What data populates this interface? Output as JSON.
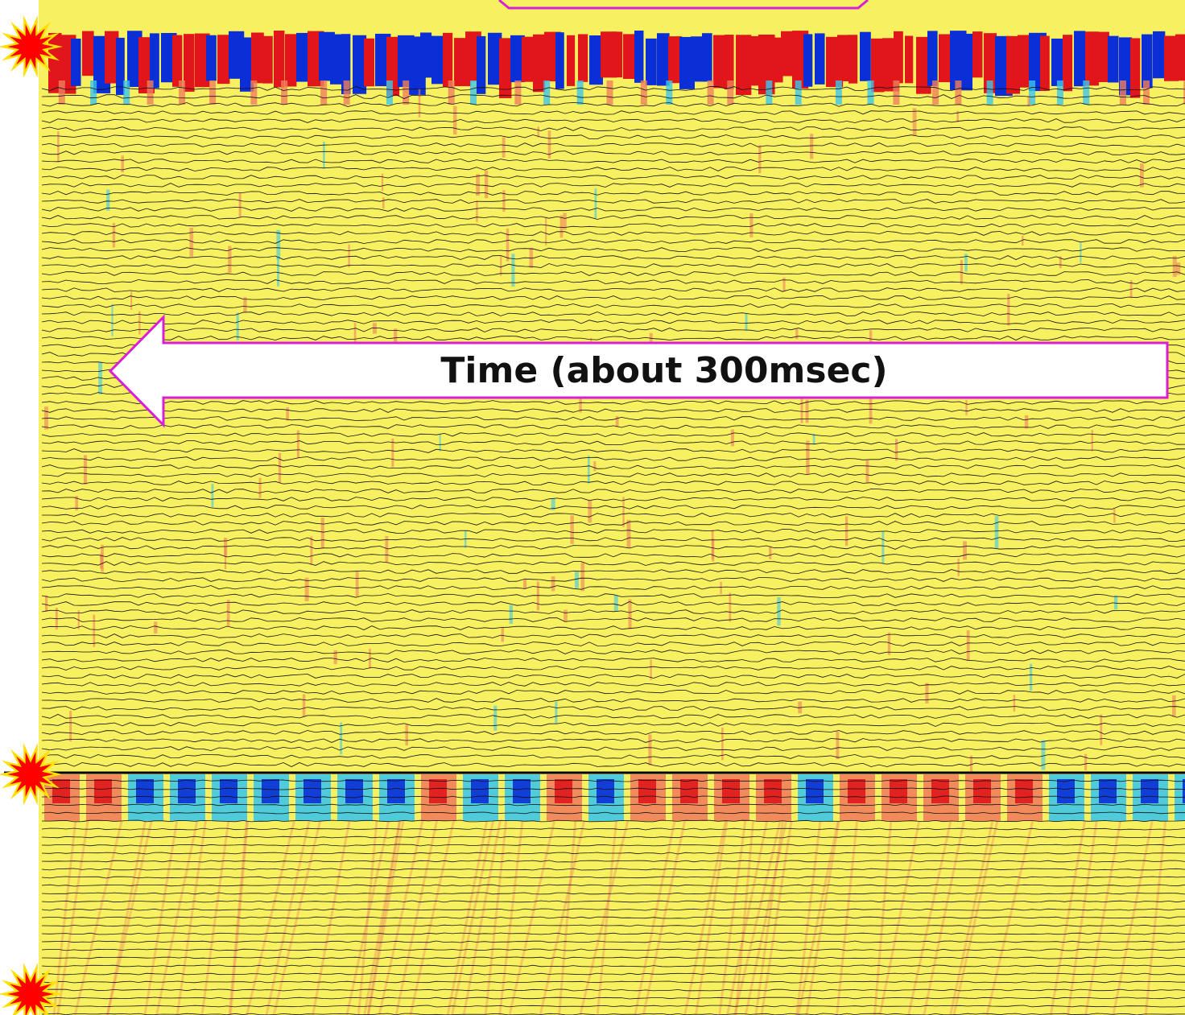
{
  "annotation": {
    "time_arrow_label": "Time (about 300msec)"
  },
  "colors": {
    "background_fill": "#f7f060",
    "trace_line": "#111111",
    "positive_strong": "#e0161b",
    "positive_weak": "#ef7f5c",
    "negative_strong": "#0a2fd6",
    "negative_weak": "#3cc6e8",
    "highlight_border": "#d81fd8",
    "arrow_fill": "#ffffff",
    "burst_outer": "#ffe000",
    "burst_inner": "#ff0000",
    "divider_line": "#000000"
  },
  "icons": {
    "source_markers": [
      "red-starburst-icon",
      "red-starburst-icon",
      "red-starburst-icon"
    ],
    "time_arrow": "left-arrow-icon"
  }
}
